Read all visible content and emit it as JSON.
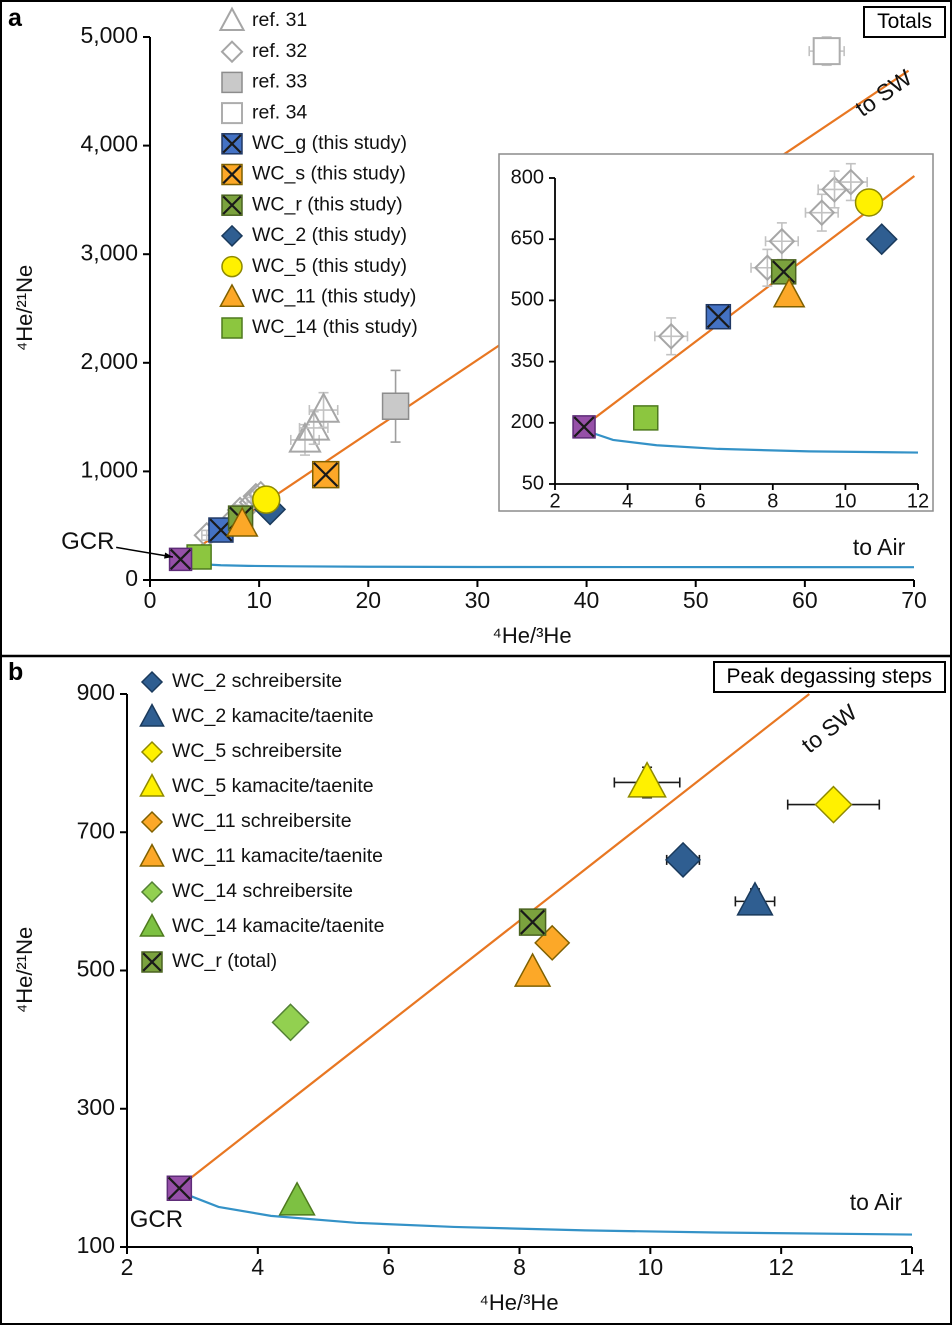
{
  "panels": {
    "a": {
      "label": "a"
    },
    "b": {
      "label": "b"
    }
  },
  "colors": {
    "sw_line": "#E87722",
    "air_line": "#3492C7",
    "blue": "#4472C4",
    "orange": "#FCA828",
    "green": "#7BA23E",
    "dark_blue": "#2F5E91",
    "yellow": "#FFF100",
    "light_green": "#8CC63F",
    "purple": "#9650A8",
    "ref_gray": "#A6A6A6"
  },
  "chart_data": [
    {
      "id": "a",
      "type": "scatter",
      "title": "Totals",
      "xlabel": "⁴He/³He",
      "ylabel": "⁴He/²¹Ne",
      "xlim": [
        0,
        70
      ],
      "ylim": [
        0,
        5000
      ],
      "xticks": [
        {
          "v": 0,
          "l": "0"
        },
        {
          "v": 10,
          "l": "10"
        },
        {
          "v": 20,
          "l": "20"
        },
        {
          "v": 30,
          "l": "30"
        },
        {
          "v": 40,
          "l": "40"
        },
        {
          "v": 50,
          "l": "50"
        },
        {
          "v": 60,
          "l": "60"
        },
        {
          "v": 70,
          "l": "70"
        }
      ],
      "yticks": [
        {
          "v": 0,
          "l": "0"
        },
        {
          "v": 1000,
          "l": "1,000"
        },
        {
          "v": 2000,
          "l": "2,000"
        },
        {
          "v": 3000,
          "l": "3,000"
        },
        {
          "v": 4000,
          "l": "4,000"
        },
        {
          "v": 5000,
          "l": "5,000"
        }
      ],
      "lines": [
        {
          "name": "to-SW",
          "color": "#E87722",
          "width": 2.2,
          "points": [
            [
              2.8,
              192
            ],
            [
              69.5,
              4690
            ]
          ]
        },
        {
          "name": "to-Air",
          "color": "#3492C7",
          "width": 2.2,
          "points": [
            [
              2.8,
              182
            ],
            [
              3.6,
              158
            ],
            [
              4.8,
              145
            ],
            [
              6.5,
              136
            ],
            [
              9,
              130
            ],
            [
              13,
              126
            ],
            [
              20,
              122
            ],
            [
              30,
              120
            ],
            [
              45,
              119
            ],
            [
              70,
              118
            ]
          ]
        }
      ],
      "series": [
        {
          "name": "ref. 31",
          "shape": "triangle",
          "fill": "none",
          "stroke": "#A6A6A6",
          "sw": 2,
          "size": 26,
          "err": "#C2C2C2",
          "points": [
            {
              "x": 14.2,
              "y": 1290,
              "ex": 1.3,
              "ey": 140
            },
            {
              "x": 15.0,
              "y": 1400,
              "ex": 1.3,
              "ey": 150
            },
            {
              "x": 15.9,
              "y": 1565,
              "ex": 1.3,
              "ey": 160
            }
          ]
        },
        {
          "name": "ref. 32",
          "shape": "diamond",
          "fill": "none",
          "stroke": "#A6A6A6",
          "sw": 2,
          "size": 24,
          "err": "#C2C2C2",
          "points": [
            {
              "x": 5.2,
              "y": 412,
              "ex": 0.45,
              "ey": 45
            },
            {
              "x": 7.85,
              "y": 580,
              "ex": 0.45,
              "ey": 45
            },
            {
              "x": 8.25,
              "y": 645,
              "ex": 0.45,
              "ey": 45
            },
            {
              "x": 9.35,
              "y": 715,
              "ex": 0.45,
              "ey": 45
            },
            {
              "x": 9.7,
              "y": 772,
              "ex": 0.45,
              "ey": 45
            },
            {
              "x": 10.15,
              "y": 790,
              "ex": 0.45,
              "ey": 45
            }
          ]
        },
        {
          "name": "ref. 33",
          "shape": "square",
          "fill": "#C9C9C9",
          "stroke": "#8C8C8C",
          "sw": 1.5,
          "size": 26,
          "err": "#9E9E9E",
          "points": [
            {
              "x": 22.5,
              "y": 1600,
              "ex": 1.0,
              "ey": 330
            }
          ]
        },
        {
          "name": "ref. 34",
          "shape": "square",
          "fill": "#FFFFFF",
          "stroke": "#ADADAD",
          "sw": 2,
          "size": 26,
          "err": "#C2C2C2",
          "points": [
            {
              "x": 62,
              "y": 4870,
              "ex": 1.6,
              "ey": 130
            }
          ]
        },
        {
          "name": "WC_g (this study)",
          "shape": "square-x",
          "fill": "#4472C4",
          "stroke": "#203864",
          "sw": 1.5,
          "size": 24,
          "points": [
            {
              "x": 6.5,
              "y": 460
            }
          ]
        },
        {
          "name": "WC_s (this study)",
          "shape": "square-x",
          "fill": "#FCA828",
          "stroke": "#7F6000",
          "sw": 1.5,
          "size": 26,
          "points": [
            {
              "x": 16.1,
              "y": 970
            }
          ]
        },
        {
          "name": "WC_r (this study)",
          "shape": "square-x",
          "fill": "#7BA23E",
          "stroke": "#4A6320",
          "sw": 1.5,
          "size": 24,
          "points": [
            {
              "x": 8.3,
              "y": 570
            }
          ]
        },
        {
          "name": "WC_2 (this study)",
          "shape": "diamond",
          "fill": "#2F5E91",
          "stroke": "#1A3A5C",
          "sw": 1.5,
          "size": 30,
          "points": [
            {
              "x": 11.0,
              "y": 650
            }
          ]
        },
        {
          "name": "WC_5 (this study)",
          "shape": "circle",
          "fill": "#FFF100",
          "stroke": "#8F8A00",
          "sw": 1.5,
          "size": 27,
          "points": [
            {
              "x": 10.65,
              "y": 740
            }
          ]
        },
        {
          "name": "WC_11 (this study)",
          "shape": "triangle",
          "fill": "#FCA828",
          "stroke": "#7F6000",
          "sw": 1.5,
          "size": 26,
          "points": [
            {
              "x": 8.45,
              "y": 513
            }
          ]
        },
        {
          "name": "WC_14 (this study)",
          "shape": "square",
          "fill": "#8CC63F",
          "stroke": "#4E7A1E",
          "sw": 1.5,
          "size": 24,
          "points": [
            {
              "x": 4.5,
              "y": 212
            }
          ]
        },
        {
          "name": "GCR",
          "shape": "square-x",
          "fill": "#9650A8",
          "stroke": "#5E2C78",
          "sw": 1.5,
          "size": 22,
          "in_legend": false,
          "points": [
            {
              "x": 2.8,
              "y": 190
            }
          ]
        }
      ],
      "annotations": [
        {
          "text": "GCR",
          "x": -5.7,
          "y": 345,
          "fs": 24,
          "leader": [
            [
              -3.1,
              300
            ],
            [
              2.1,
              212
            ]
          ]
        },
        {
          "text": "to SW",
          "x": 67.3,
          "y": 4470,
          "rotate": -35,
          "fs": 23
        },
        {
          "text": "to Air",
          "x": 66.8,
          "y": 285,
          "fs": 23
        }
      ],
      "inset": {
        "xlim": [
          2,
          12
        ],
        "ylim": [
          50,
          800
        ],
        "xticks": [
          {
            "v": 2,
            "l": "2"
          },
          {
            "v": 4,
            "l": "4"
          },
          {
            "v": 6,
            "l": "6"
          },
          {
            "v": 8,
            "l": "8"
          },
          {
            "v": 10,
            "l": "10"
          },
          {
            "v": 12,
            "l": "12"
          }
        ],
        "yticks": [
          {
            "v": 50,
            "l": "50"
          },
          {
            "v": 200,
            "l": "200"
          },
          {
            "v": 350,
            "l": "350"
          },
          {
            "v": 500,
            "l": "500"
          },
          {
            "v": 650,
            "l": "650"
          },
          {
            "v": 800,
            "l": "800"
          }
        ],
        "lines": [
          {
            "name": "to-SW",
            "color": "#E87722",
            "width": 2.2,
            "points": [
              [
                2.8,
                192
              ],
              [
                11.9,
                805
              ]
            ]
          },
          {
            "name": "to-Air",
            "color": "#3492C7",
            "width": 2.2,
            "points": [
              [
                2.8,
                182
              ],
              [
                3.6,
                158
              ],
              [
                4.8,
                145
              ],
              [
                6.5,
                136
              ],
              [
                9,
                130
              ],
              [
                12,
                127
              ]
            ]
          }
        ]
      }
    },
    {
      "id": "b",
      "type": "scatter",
      "title": "Peak degassing steps",
      "xlabel": "⁴He/³He",
      "ylabel": "⁴He/²¹Ne",
      "xlim": [
        2,
        14
      ],
      "ylim": [
        100,
        900
      ],
      "xticks": [
        {
          "v": 2,
          "l": "2"
        },
        {
          "v": 4,
          "l": "4"
        },
        {
          "v": 6,
          "l": "6"
        },
        {
          "v": 8,
          "l": "8"
        },
        {
          "v": 10,
          "l": "10"
        },
        {
          "v": 12,
          "l": "12"
        },
        {
          "v": 14,
          "l": "14"
        }
      ],
      "yticks": [
        {
          "v": 100,
          "l": "100"
        },
        {
          "v": 300,
          "l": "300"
        },
        {
          "v": 500,
          "l": "500"
        },
        {
          "v": 700,
          "l": "700"
        },
        {
          "v": 900,
          "l": "900"
        }
      ],
      "lines": [
        {
          "name": "to-SW",
          "color": "#E87722",
          "width": 2.2,
          "points": [
            [
              2.8,
              187
            ],
            [
              12.43,
              900
            ]
          ]
        },
        {
          "name": "to-Air",
          "color": "#3492C7",
          "width": 2.2,
          "points": [
            [
              2.8,
              180
            ],
            [
              3.4,
              158
            ],
            [
              4.2,
              145
            ],
            [
              5.5,
              135
            ],
            [
              7,
              129
            ],
            [
              9,
              124
            ],
            [
              11,
              121
            ],
            [
              14,
              118
            ]
          ]
        }
      ],
      "series": [
        {
          "name": "WC_2 schreibersite",
          "shape": "diamond",
          "fill": "#2F5E91",
          "stroke": "#1A3A5C",
          "sw": 1.5,
          "size": 34,
          "points": [
            {
              "x": 10.5,
              "y": 660,
              "ex": 0.25
            }
          ]
        },
        {
          "name": "WC_2 kamacite/taenite",
          "shape": "triangle",
          "fill": "#2F5E91",
          "stroke": "#1A3A5C",
          "sw": 1.5,
          "size": 30,
          "points": [
            {
              "x": 11.6,
              "y": 600,
              "ex": 0.3,
              "ey": 18
            }
          ]
        },
        {
          "name": "WC_5 schreibersite",
          "shape": "diamond",
          "fill": "#FFF100",
          "stroke": "#8F8A00",
          "sw": 1.5,
          "size": 36,
          "points": [
            {
              "x": 12.8,
              "y": 740,
              "ex": 0.7
            }
          ]
        },
        {
          "name": "WC_5 kamacite/taenite",
          "shape": "triangle",
          "fill": "#FFF100",
          "stroke": "#8F8A00",
          "sw": 1.5,
          "size": 32,
          "points": [
            {
              "x": 9.95,
              "y": 772,
              "ex": 0.5,
              "ey": 22
            }
          ]
        },
        {
          "name": "WC_11 schreibersite",
          "shape": "diamond",
          "fill": "#FCA828",
          "stroke": "#7F6000",
          "sw": 1.5,
          "size": 34,
          "points": [
            {
              "x": 8.5,
              "y": 540
            }
          ]
        },
        {
          "name": "WC_11 kamacite/taenite",
          "shape": "triangle",
          "fill": "#FCA828",
          "stroke": "#7F6000",
          "sw": 1.5,
          "size": 30,
          "points": [
            {
              "x": 8.2,
              "y": 497,
              "ey": 14
            }
          ]
        },
        {
          "name": "WC_14 schreibersite",
          "shape": "diamond",
          "fill": "#92D050",
          "stroke": "#538135",
          "sw": 1.5,
          "size": 36,
          "points": [
            {
              "x": 4.5,
              "y": 425
            }
          ]
        },
        {
          "name": "WC_14 kamacite/taenite",
          "shape": "triangle",
          "fill": "#7DC142",
          "stroke": "#4E7A1E",
          "sw": 1.5,
          "size": 30,
          "points": [
            {
              "x": 4.6,
              "y": 166,
              "ey": 12
            }
          ]
        },
        {
          "name": "WC_r (total)",
          "shape": "square-x",
          "fill": "#7BA23E",
          "stroke": "#4A6320",
          "sw": 1.5,
          "size": 26,
          "points": [
            {
              "x": 8.2,
              "y": 570
            }
          ]
        },
        {
          "name": "GCR",
          "shape": "square-x",
          "fill": "#9650A8",
          "stroke": "#5E2C78",
          "sw": 1.5,
          "size": 24,
          "in_legend": false,
          "points": [
            {
              "x": 2.8,
              "y": 185
            }
          ]
        }
      ],
      "annotations": [
        {
          "text": "GCR",
          "x": 2.45,
          "y": 138,
          "fs": 24
        },
        {
          "text": "to SW",
          "x": 12.75,
          "y": 848,
          "rotate": -38,
          "fs": 23
        },
        {
          "text": "to Air",
          "x": 13.45,
          "y": 162,
          "fs": 23
        }
      ]
    }
  ]
}
